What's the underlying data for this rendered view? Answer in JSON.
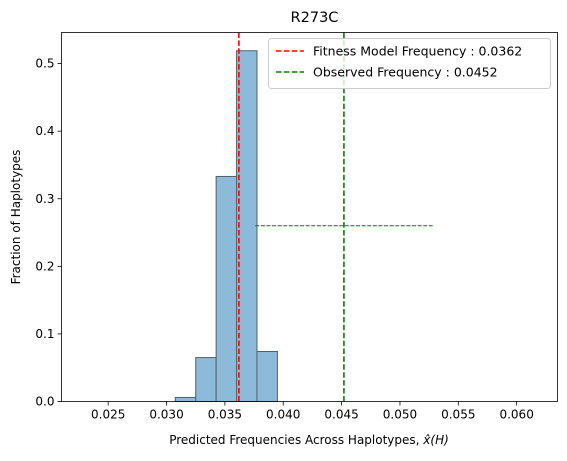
{
  "chart_data": {
    "type": "bar",
    "title": "R273C",
    "xlabel_prefix": "Predicted Frequencies Across Haplotypes, ",
    "xlabel_math": "x̂(H)",
    "ylabel": "Fraction of Haplotypes",
    "xlim": [
      0.021,
      0.0635
    ],
    "ylim": [
      0,
      0.546
    ],
    "x_ticks": [
      {
        "value": 0.025,
        "label": "0.025"
      },
      {
        "value": 0.03,
        "label": "0.030"
      },
      {
        "value": 0.035,
        "label": "0.035"
      },
      {
        "value": 0.04,
        "label": "0.040"
      },
      {
        "value": 0.045,
        "label": "0.045"
      },
      {
        "value": 0.05,
        "label": "0.050"
      },
      {
        "value": 0.055,
        "label": "0.055"
      },
      {
        "value": 0.06,
        "label": "0.060"
      }
    ],
    "y_ticks": [
      {
        "value": 0.0,
        "label": "0.0"
      },
      {
        "value": 0.1,
        "label": "0.1"
      },
      {
        "value": 0.2,
        "label": "0.2"
      },
      {
        "value": 0.3,
        "label": "0.3"
      },
      {
        "value": 0.4,
        "label": "0.4"
      },
      {
        "value": 0.5,
        "label": "0.5"
      }
    ],
    "bins": [
      {
        "x0": 0.03075,
        "x1": 0.0325,
        "value": 0.006
      },
      {
        "x0": 0.0325,
        "x1": 0.03425,
        "value": 0.065
      },
      {
        "x0": 0.03425,
        "x1": 0.036,
        "value": 0.333
      },
      {
        "x0": 0.036,
        "x1": 0.03775,
        "value": 0.519
      },
      {
        "x0": 0.03775,
        "x1": 0.0395,
        "value": 0.074
      }
    ],
    "bar_color": "#8dbad9",
    "bar_edge": "#4f5f6b",
    "vlines": [
      {
        "name": "Fitness Model Frequency : 0.0362",
        "x": 0.0362,
        "color": "#ff0000"
      },
      {
        "name": "Observed Frequency : 0.0452",
        "x": 0.0452,
        "color": "#008000"
      }
    ],
    "error_bar": {
      "x": 0.0452,
      "xmin": 0.0376,
      "xmax": 0.0528,
      "y": 0.26,
      "color": "#008000"
    },
    "grid": false,
    "legend_position": "top-right"
  }
}
